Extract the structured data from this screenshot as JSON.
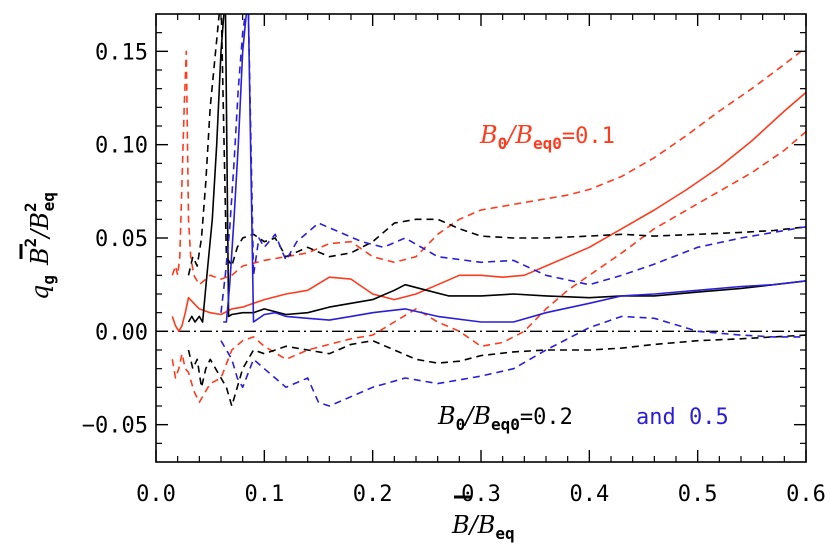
{
  "chart_data": {
    "type": "line",
    "xlim": [
      0.0,
      0.6
    ],
    "ylim": [
      -0.07,
      0.17
    ],
    "x_ticks": [
      {
        "value": 0.0,
        "label": "0.0"
      },
      {
        "value": 0.1,
        "label": "0.1"
      },
      {
        "value": 0.2,
        "label": "0.2"
      },
      {
        "value": 0.3,
        "label": "0.3"
      },
      {
        "value": 0.4,
        "label": "0.4"
      },
      {
        "value": 0.5,
        "label": "0.5"
      },
      {
        "value": 0.6,
        "label": "0.6"
      }
    ],
    "y_ticks": [
      {
        "value": -0.05,
        "label": "−0.05"
      },
      {
        "value": 0.0,
        "label": "0.00"
      },
      {
        "value": 0.05,
        "label": "0.05"
      },
      {
        "value": 0.1,
        "label": "0.10"
      },
      {
        "value": 0.15,
        "label": "0.15"
      }
    ],
    "xlabel": "B/B_eq",
    "ylabel": "q_g B^2/B_eq^2",
    "grid": false,
    "reference_line": {
      "y": 0.0,
      "style": "dash-dot",
      "color": "#000000"
    },
    "annotations": [
      {
        "text": "B_0/B_eq0=0.1",
        "color": "#ff3b1e"
      },
      {
        "text": "B_0/B_eq0=0.2",
        "color": "#000000"
      },
      {
        "text": "and 0.5",
        "color": "#2a1fd6"
      }
    ],
    "series": [
      {
        "id": "red-mean",
        "color": "#ff3b1e",
        "dash": "solid",
        "x": [
          0.015,
          0.018,
          0.021,
          0.024,
          0.027,
          0.03,
          0.035,
          0.04,
          0.05,
          0.06,
          0.07,
          0.08,
          0.09,
          0.1,
          0.12,
          0.14,
          0.16,
          0.18,
          0.2,
          0.22,
          0.24,
          0.26,
          0.28,
          0.3,
          0.32,
          0.34,
          0.36,
          0.38,
          0.4,
          0.43,
          0.46,
          0.49,
          0.52,
          0.55,
          0.58,
          0.6
        ],
        "y": [
          0.008,
          0.003,
          0.0,
          0.003,
          0.01,
          0.018,
          0.015,
          0.012,
          0.01,
          0.009,
          0.012,
          0.013,
          0.015,
          0.017,
          0.02,
          0.022,
          0.029,
          0.028,
          0.02,
          0.017,
          0.02,
          0.025,
          0.03,
          0.03,
          0.029,
          0.03,
          0.035,
          0.04,
          0.045,
          0.055,
          0.065,
          0.076,
          0.088,
          0.102,
          0.118,
          0.128
        ]
      },
      {
        "id": "red-upper",
        "color": "#ff3b1e",
        "dash": "dashed",
        "x": [
          0.015,
          0.018,
          0.02,
          0.022,
          0.024,
          0.026,
          0.028,
          0.03,
          0.032,
          0.035,
          0.04,
          0.05,
          0.06,
          0.07,
          0.08,
          0.1,
          0.12,
          0.14,
          0.16,
          0.18,
          0.2,
          0.22,
          0.24,
          0.26,
          0.28,
          0.3,
          0.32,
          0.34,
          0.36,
          0.38,
          0.4,
          0.43,
          0.46,
          0.49,
          0.52,
          0.55,
          0.58,
          0.6
        ],
        "y": [
          0.03,
          0.035,
          0.03,
          0.04,
          0.08,
          0.12,
          0.15,
          0.06,
          0.04,
          0.03,
          0.025,
          0.03,
          0.028,
          0.03,
          0.035,
          0.038,
          0.04,
          0.042,
          0.047,
          0.048,
          0.04,
          0.037,
          0.04,
          0.052,
          0.06,
          0.065,
          0.067,
          0.069,
          0.071,
          0.073,
          0.076,
          0.083,
          0.093,
          0.105,
          0.118,
          0.13,
          0.143,
          0.152
        ]
      },
      {
        "id": "red-lower",
        "color": "#ff3b1e",
        "dash": "dashed",
        "x": [
          0.015,
          0.018,
          0.021,
          0.024,
          0.027,
          0.03,
          0.035,
          0.04,
          0.05,
          0.06,
          0.07,
          0.08,
          0.09,
          0.1,
          0.12,
          0.14,
          0.16,
          0.18,
          0.2,
          0.22,
          0.24,
          0.26,
          0.28,
          0.3,
          0.32,
          0.34,
          0.36,
          0.38,
          0.4,
          0.43,
          0.46,
          0.49,
          0.52,
          0.55,
          0.58,
          0.6
        ],
        "y": [
          -0.015,
          -0.025,
          -0.02,
          -0.012,
          -0.02,
          -0.022,
          -0.032,
          -0.038,
          -0.028,
          -0.025,
          -0.01,
          -0.005,
          -0.003,
          -0.008,
          -0.015,
          -0.01,
          -0.007,
          -0.004,
          -0.002,
          0.005,
          0.012,
          0.005,
          0.0,
          -0.008,
          -0.006,
          0.0,
          0.012,
          0.022,
          0.03,
          0.042,
          0.055,
          0.065,
          0.075,
          0.085,
          0.097,
          0.107
        ]
      },
      {
        "id": "black-mean",
        "color": "#000000",
        "dash": "solid",
        "x": [
          0.03,
          0.033,
          0.036,
          0.04,
          0.043,
          0.047,
          0.052,
          0.056,
          0.06,
          0.064,
          0.067,
          0.07,
          0.08,
          0.09,
          0.1,
          0.12,
          0.14,
          0.16,
          0.18,
          0.2,
          0.22,
          0.23,
          0.25,
          0.27,
          0.3,
          0.33,
          0.36,
          0.4,
          0.43,
          0.46,
          0.5,
          0.54,
          0.57,
          0.6
        ],
        "y": [
          0.005,
          0.008,
          0.005,
          0.008,
          0.005,
          0.03,
          0.06,
          0.1,
          0.15,
          0.18,
          0.008,
          0.009,
          0.01,
          0.01,
          0.012,
          0.009,
          0.01,
          0.013,
          0.015,
          0.017,
          0.022,
          0.025,
          0.022,
          0.019,
          0.019,
          0.02,
          0.019,
          0.018,
          0.019,
          0.019,
          0.021,
          0.023,
          0.025,
          0.027
        ]
      },
      {
        "id": "black-upper",
        "color": "#000000",
        "dash": "dashed",
        "x": [
          0.03,
          0.034,
          0.038,
          0.042,
          0.046,
          0.05,
          0.055,
          0.06,
          0.065,
          0.07,
          0.075,
          0.08,
          0.09,
          0.1,
          0.11,
          0.12,
          0.14,
          0.16,
          0.18,
          0.2,
          0.22,
          0.24,
          0.26,
          0.28,
          0.3,
          0.33,
          0.36,
          0.4,
          0.43,
          0.46,
          0.5,
          0.54,
          0.57,
          0.6
        ],
        "y": [
          0.03,
          0.04,
          0.035,
          0.05,
          0.08,
          0.12,
          0.15,
          0.18,
          0.04,
          0.035,
          0.045,
          0.05,
          0.052,
          0.048,
          0.05,
          0.04,
          0.045,
          0.04,
          0.042,
          0.048,
          0.058,
          0.06,
          0.06,
          0.055,
          0.051,
          0.05,
          0.05,
          0.051,
          0.052,
          0.051,
          0.052,
          0.053,
          0.054,
          0.056
        ]
      },
      {
        "id": "black-lower",
        "color": "#000000",
        "dash": "dashed",
        "x": [
          0.03,
          0.034,
          0.038,
          0.042,
          0.046,
          0.05,
          0.055,
          0.06,
          0.065,
          0.07,
          0.08,
          0.09,
          0.1,
          0.12,
          0.14,
          0.16,
          0.18,
          0.2,
          0.22,
          0.24,
          0.26,
          0.28,
          0.3,
          0.33,
          0.36,
          0.4,
          0.43,
          0.46,
          0.5,
          0.54,
          0.57,
          0.6
        ],
        "y": [
          -0.01,
          -0.02,
          -0.015,
          -0.03,
          -0.02,
          -0.015,
          -0.02,
          -0.025,
          -0.03,
          -0.04,
          -0.02,
          -0.01,
          -0.012,
          -0.008,
          -0.01,
          -0.012,
          -0.007,
          -0.005,
          -0.01,
          -0.015,
          -0.017,
          -0.016,
          -0.013,
          -0.011,
          -0.01,
          -0.01,
          -0.009,
          -0.007,
          -0.005,
          -0.004,
          -0.003,
          -0.002
        ]
      },
      {
        "id": "blue-mean",
        "color": "#2a1fd6",
        "dash": "solid",
        "x": [
          0.062,
          0.065,
          0.068,
          0.072,
          0.076,
          0.08,
          0.085,
          0.09,
          0.1,
          0.11,
          0.12,
          0.14,
          0.16,
          0.18,
          0.2,
          0.23,
          0.26,
          0.3,
          0.33,
          0.36,
          0.4,
          0.43,
          0.46,
          0.5,
          0.54,
          0.57,
          0.6
        ],
        "y": [
          0.005,
          0.005,
          0.025,
          0.06,
          0.1,
          0.15,
          0.18,
          0.005,
          0.009,
          0.01,
          0.008,
          0.007,
          0.006,
          0.008,
          0.01,
          0.012,
          0.008,
          0.005,
          0.005,
          0.01,
          0.015,
          0.019,
          0.02,
          0.022,
          0.024,
          0.025,
          0.027
        ]
      },
      {
        "id": "blue-upper",
        "color": "#2a1fd6",
        "dash": "dashed",
        "x": [
          0.06,
          0.064,
          0.068,
          0.072,
          0.076,
          0.08,
          0.085,
          0.09,
          0.095,
          0.1,
          0.11,
          0.12,
          0.13,
          0.15,
          0.17,
          0.19,
          0.21,
          0.23,
          0.26,
          0.3,
          0.33,
          0.36,
          0.4,
          0.43,
          0.46,
          0.5,
          0.54,
          0.57,
          0.6
        ],
        "y": [
          0.01,
          0.03,
          0.055,
          0.09,
          0.13,
          0.16,
          0.18,
          0.03,
          0.05,
          0.045,
          0.052,
          0.038,
          0.048,
          0.058,
          0.053,
          0.048,
          0.045,
          0.05,
          0.04,
          0.037,
          0.038,
          0.03,
          0.025,
          0.03,
          0.036,
          0.045,
          0.05,
          0.053,
          0.056
        ]
      },
      {
        "id": "blue-lower",
        "color": "#2a1fd6",
        "dash": "dashed",
        "x": [
          0.06,
          0.065,
          0.07,
          0.075,
          0.08,
          0.09,
          0.1,
          0.12,
          0.14,
          0.15,
          0.16,
          0.18,
          0.2,
          0.23,
          0.26,
          0.3,
          0.33,
          0.36,
          0.4,
          0.43,
          0.46,
          0.5,
          0.54,
          0.57,
          0.6
        ],
        "y": [
          -0.005,
          -0.01,
          -0.015,
          -0.025,
          -0.03,
          -0.015,
          -0.02,
          -0.03,
          -0.025,
          -0.038,
          -0.04,
          -0.035,
          -0.03,
          -0.025,
          -0.028,
          -0.024,
          -0.02,
          -0.01,
          0.002,
          0.008,
          0.007,
          0.0,
          -0.002,
          -0.003,
          -0.003
        ]
      }
    ]
  }
}
